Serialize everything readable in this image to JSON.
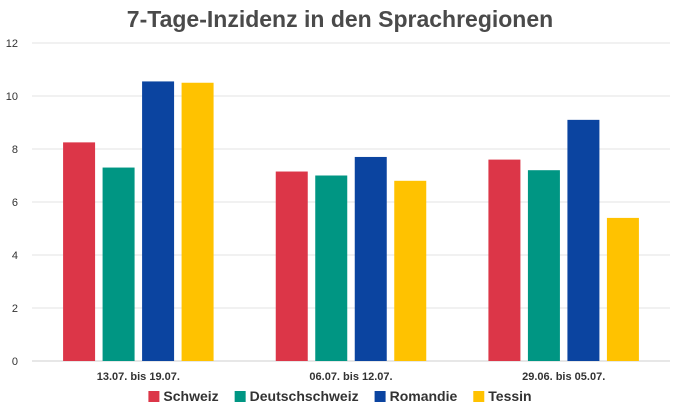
{
  "chart_data": {
    "type": "bar",
    "title": "7-Tage-Inzidenz in den Sprachregionen",
    "xlabel": "",
    "ylabel": "",
    "ylim": [
      0,
      12
    ],
    "yticks": [
      0,
      2,
      4,
      6,
      8,
      10,
      12
    ],
    "grid": true,
    "legend_position": "bottom",
    "categories": [
      "13.07. bis 19.07.",
      "06.07. bis 12.07.",
      "29.06. bis 05.07."
    ],
    "series": [
      {
        "name": "Schweiz",
        "color": "#dc3648",
        "values": [
          8.25,
          7.15,
          7.6
        ]
      },
      {
        "name": "Deutschschweiz",
        "color": "#009683",
        "values": [
          7.3,
          7.0,
          7.2
        ]
      },
      {
        "name": "Romandie",
        "color": "#0b44a0",
        "values": [
          10.55,
          7.7,
          9.1
        ]
      },
      {
        "name": "Tessin",
        "color": "#ffc200",
        "values": [
          10.5,
          6.8,
          5.4
        ]
      }
    ]
  }
}
